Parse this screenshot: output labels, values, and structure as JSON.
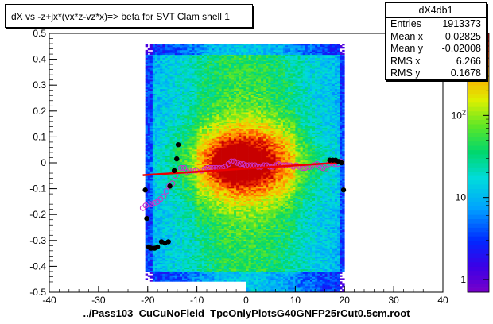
{
  "title": "dX vs  -z+jx*(vx*z-vz*x)=> beta  for SVT Clam shell 1",
  "xlabel": "../Pass103_CuCuNoField_TpcOnlyPlotsG40GNFP25rCut0.5cm.root",
  "stats": {
    "name": "dX4db1",
    "rows": [
      {
        "label": "Entries",
        "value": "1913373"
      },
      {
        "label": "Mean x",
        "value": "0.02825"
      },
      {
        "label": "Mean y",
        "value": "-0.02008"
      },
      {
        "label": "RMS x",
        "value": "6.266"
      },
      {
        "label": "RMS y",
        "value": "0.1678"
      }
    ]
  },
  "colors": {
    "fit_line": "#ee0000",
    "profile_points": "#000000",
    "profile_open": "#cc33cc",
    "frame": "#000000"
  },
  "chart_data": {
    "type": "heatmap",
    "title": "dX vs  -z+jx*(vx*z-vz*x)=> beta  for SVT Clam shell 1",
    "xlabel": "../Pass103_CuCuNoField_TpcOnlyPlotsG40GNFP25rCut0.5cm.root",
    "ylabel": "",
    "xlim": [
      -40,
      40
    ],
    "ylim": [
      -0.5,
      0.5
    ],
    "x_ticks": [
      -40,
      -30,
      -20,
      -10,
      0,
      10,
      20,
      30,
      40
    ],
    "y_ticks": [
      -0.5,
      -0.4,
      -0.3,
      -0.2,
      -0.1,
      0,
      0.1,
      0.2,
      0.3,
      0.4,
      0.5
    ],
    "z_scale": "log",
    "z_ticks": [
      {
        "value": 1,
        "label": "1"
      },
      {
        "value": 10,
        "label": "10"
      },
      {
        "value": 100,
        "label": "10^2"
      }
    ],
    "z_range": [
      0.7,
      1000
    ],
    "fit_line": {
      "x": [
        -21,
        20
      ],
      "y": [
        -0.048,
        0.002
      ]
    },
    "profile_filled": [
      {
        "x": -20.5,
        "y": -0.105
      },
      {
        "x": -20.2,
        "y": -0.215
      },
      {
        "x": -19.8,
        "y": -0.325
      },
      {
        "x": -19.3,
        "y": -0.33
      },
      {
        "x": -18.6,
        "y": -0.33
      },
      {
        "x": -18.0,
        "y": -0.325
      },
      {
        "x": -17.2,
        "y": -0.305
      },
      {
        "x": -16.5,
        "y": -0.31
      },
      {
        "x": -15.8,
        "y": -0.305
      },
      {
        "x": -15.5,
        "y": -0.09
      },
      {
        "x": -14.6,
        "y": -0.03
      },
      {
        "x": -14.1,
        "y": 0.015
      },
      {
        "x": -13.8,
        "y": 0.07
      },
      {
        "x": 17.0,
        "y": 0.01
      },
      {
        "x": 17.6,
        "y": 0.01
      },
      {
        "x": 18.2,
        "y": 0.01
      },
      {
        "x": 18.8,
        "y": 0.005
      },
      {
        "x": 19.4,
        "y": 0.0
      },
      {
        "x": 19.8,
        "y": -0.105
      }
    ],
    "profile_open": [
      {
        "x": -21.0,
        "y": -0.175
      },
      {
        "x": -20.4,
        "y": -0.165
      },
      {
        "x": -19.8,
        "y": -0.16
      },
      {
        "x": -19.2,
        "y": -0.16
      },
      {
        "x": -18.6,
        "y": -0.155
      },
      {
        "x": -18.0,
        "y": -0.15
      },
      {
        "x": -17.4,
        "y": -0.14
      },
      {
        "x": -16.8,
        "y": -0.13
      },
      {
        "x": -16.2,
        "y": -0.11
      },
      {
        "x": -15.6,
        "y": -0.09
      },
      {
        "x": -15.0,
        "y": -0.08
      },
      {
        "x": -14.4,
        "y": -0.05
      },
      {
        "x": -13.2,
        "y": -0.02
      },
      {
        "x": -12.6,
        "y": -0.02
      },
      {
        "x": -12.0,
        "y": -0.035
      },
      {
        "x": -11.4,
        "y": -0.03
      },
      {
        "x": -10.8,
        "y": -0.03
      },
      {
        "x": -10.2,
        "y": -0.03
      },
      {
        "x": -9.0,
        "y": -0.03
      },
      {
        "x": -8.4,
        "y": -0.025
      },
      {
        "x": -7.8,
        "y": -0.02
      },
      {
        "x": -7.2,
        "y": -0.02
      },
      {
        "x": -6.6,
        "y": -0.02
      },
      {
        "x": -6.0,
        "y": -0.02
      },
      {
        "x": -5.4,
        "y": -0.02
      },
      {
        "x": -4.8,
        "y": -0.02
      },
      {
        "x": -4.2,
        "y": -0.015
      },
      {
        "x": -3.6,
        "y": -0.005
      },
      {
        "x": -3.0,
        "y": 0.005
      },
      {
        "x": -2.4,
        "y": 0.005
      },
      {
        "x": -1.8,
        "y": 0.0
      },
      {
        "x": -1.2,
        "y": -0.005
      },
      {
        "x": -0.6,
        "y": -0.005
      },
      {
        "x": 0.0,
        "y": -0.01
      },
      {
        "x": 0.6,
        "y": -0.01
      },
      {
        "x": 1.2,
        "y": -0.01
      },
      {
        "x": 1.8,
        "y": -0.01
      },
      {
        "x": 2.4,
        "y": -0.015
      },
      {
        "x": 3.0,
        "y": -0.015
      },
      {
        "x": 3.6,
        "y": -0.01
      },
      {
        "x": 4.2,
        "y": -0.01
      },
      {
        "x": 4.8,
        "y": -0.015
      },
      {
        "x": 5.4,
        "y": -0.015
      },
      {
        "x": 6.0,
        "y": -0.01
      },
      {
        "x": 6.6,
        "y": -0.005
      },
      {
        "x": 7.2,
        "y": -0.01
      },
      {
        "x": 7.8,
        "y": -0.01
      },
      {
        "x": 8.4,
        "y": -0.01
      },
      {
        "x": 9.0,
        "y": -0.01
      },
      {
        "x": 9.6,
        "y": -0.015
      },
      {
        "x": 10.2,
        "y": -0.01
      },
      {
        "x": 10.8,
        "y": -0.015
      },
      {
        "x": 11.4,
        "y": -0.02
      },
      {
        "x": 12.0,
        "y": -0.02
      },
      {
        "x": 12.6,
        "y": -0.015
      },
      {
        "x": 13.2,
        "y": -0.015
      },
      {
        "x": 13.8,
        "y": -0.01
      },
      {
        "x": 14.4,
        "y": -0.005
      },
      {
        "x": 15.0,
        "y": -0.015
      },
      {
        "x": 15.6,
        "y": -0.02
      },
      {
        "x": 16.2,
        "y": -0.025
      },
      {
        "x": 16.8,
        "y": -0.005
      },
      {
        "x": 17.4,
        "y": 0.0
      },
      {
        "x": 18.0,
        "y": -0.005
      },
      {
        "x": 18.6,
        "y": -0.005
      },
      {
        "x": 19.2,
        "y": 0.005
      }
    ]
  }
}
